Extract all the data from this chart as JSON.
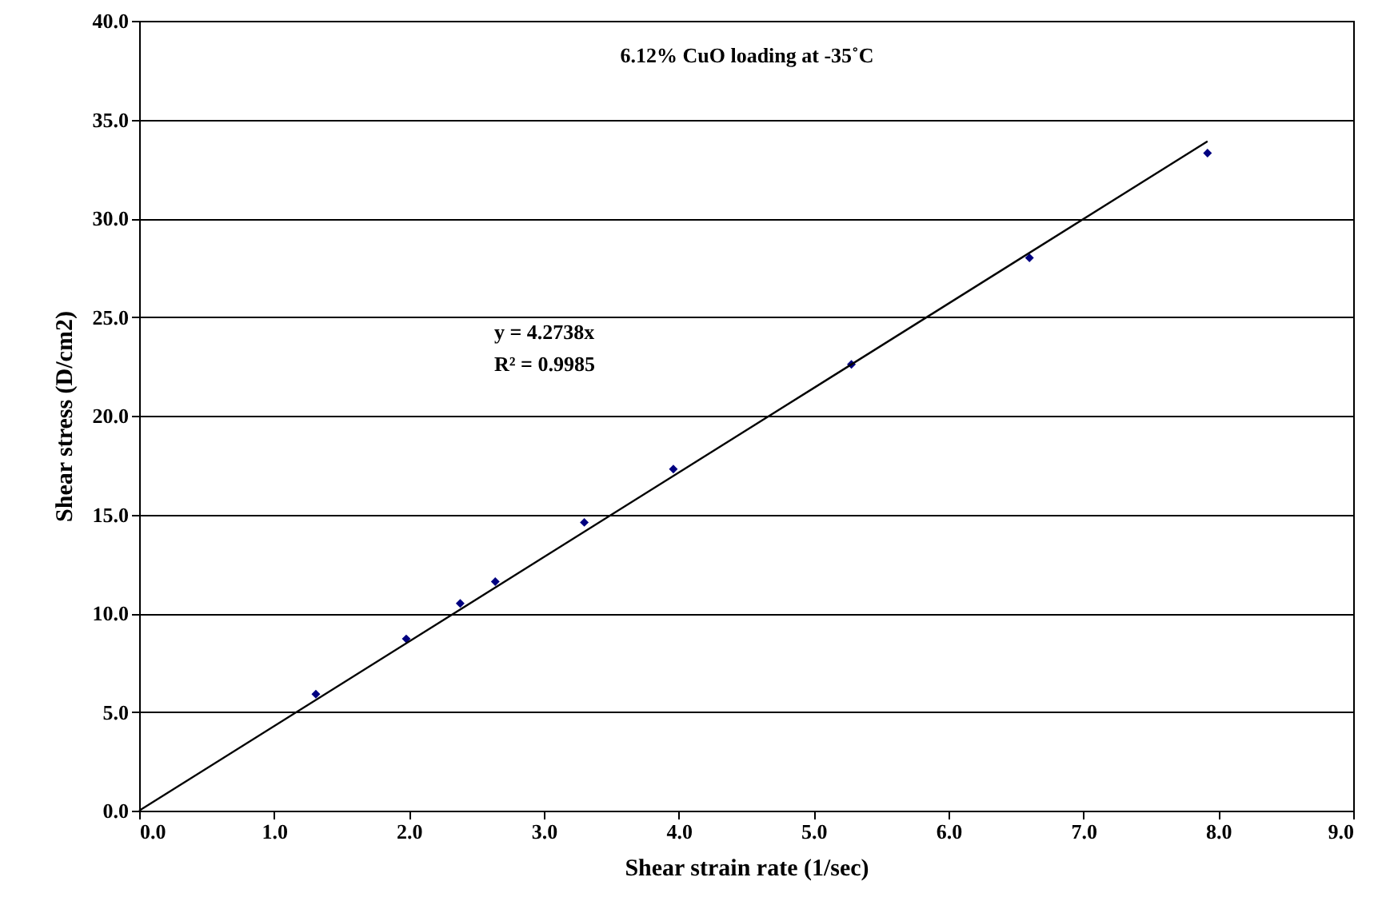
{
  "chart_data": {
    "type": "scatter",
    "title": "6.12% CuO loading at -35˚C",
    "xlabel": "Shear strain rate (1/sec)",
    "ylabel": "Shear stress (D/cm2)",
    "annotations": [
      "y = 4.2738x",
      "R² = 0.9985"
    ],
    "series": [
      {
        "color": "#000080",
        "marker": "diamond",
        "x": [
          1.31,
          1.98,
          2.38,
          2.64,
          3.3,
          3.96,
          5.28,
          6.6,
          7.92
        ],
        "values": [
          5.9,
          8.7,
          10.5,
          11.6,
          14.6,
          17.3,
          22.6,
          28,
          33.3
        ]
      },
      {
        "type": "line",
        "color": "#000000",
        "x": [
          0,
          7.92
        ],
        "values": [
          0,
          33.9
        ]
      }
    ],
    "xlim": [
      0,
      9
    ],
    "xticks": [
      {
        "value": 0,
        "label": "0.0"
      },
      {
        "value": 1,
        "label": "1.0"
      },
      {
        "value": 2,
        "label": "2.0"
      },
      {
        "value": 3,
        "label": "3.0"
      },
      {
        "value": 4,
        "label": "4.0"
      },
      {
        "value": 5,
        "label": "5.0"
      },
      {
        "value": 6,
        "label": "6.0"
      },
      {
        "value": 7,
        "label": "7.0"
      },
      {
        "value": 8,
        "label": "8.0"
      },
      {
        "value": 9,
        "label": "9.0"
      }
    ],
    "ylim": [
      0,
      40
    ],
    "yticks": [
      {
        "value": 0,
        "label": "0.0"
      },
      {
        "value": 5,
        "label": "5.0"
      },
      {
        "value": 10,
        "label": "10.0"
      },
      {
        "value": 15,
        "label": "15.0"
      },
      {
        "value": 20,
        "label": "20.0"
      },
      {
        "value": 25,
        "label": "25.0"
      },
      {
        "value": 30,
        "label": "30.0"
      },
      {
        "value": 35,
        "label": "35.0"
      },
      {
        "value": 40,
        "label": "40.0"
      }
    ],
    "grid": "y"
  }
}
